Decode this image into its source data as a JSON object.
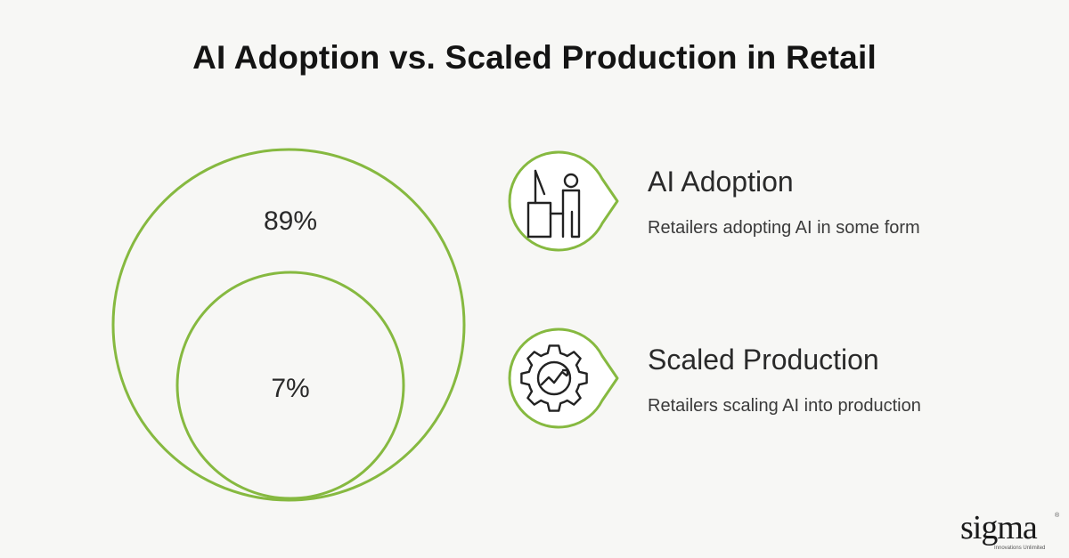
{
  "title": "AI Adoption vs. Scaled Production in Retail",
  "accent_color": "#86b940",
  "outer_circle": {
    "label": "89%",
    "value": 89
  },
  "inner_circle": {
    "label": "7%",
    "value": 7
  },
  "legend": [
    {
      "icon": "person-at-desk-icon",
      "heading": "AI Adoption",
      "description": "Retailers adopting AI in some form"
    },
    {
      "icon": "gear-chart-icon",
      "heading": "Scaled Production",
      "description": "Retailers scaling AI into production"
    }
  ],
  "logo": {
    "word": "sigma",
    "tagline": "Innovations Unlimited",
    "mark": "®"
  }
}
